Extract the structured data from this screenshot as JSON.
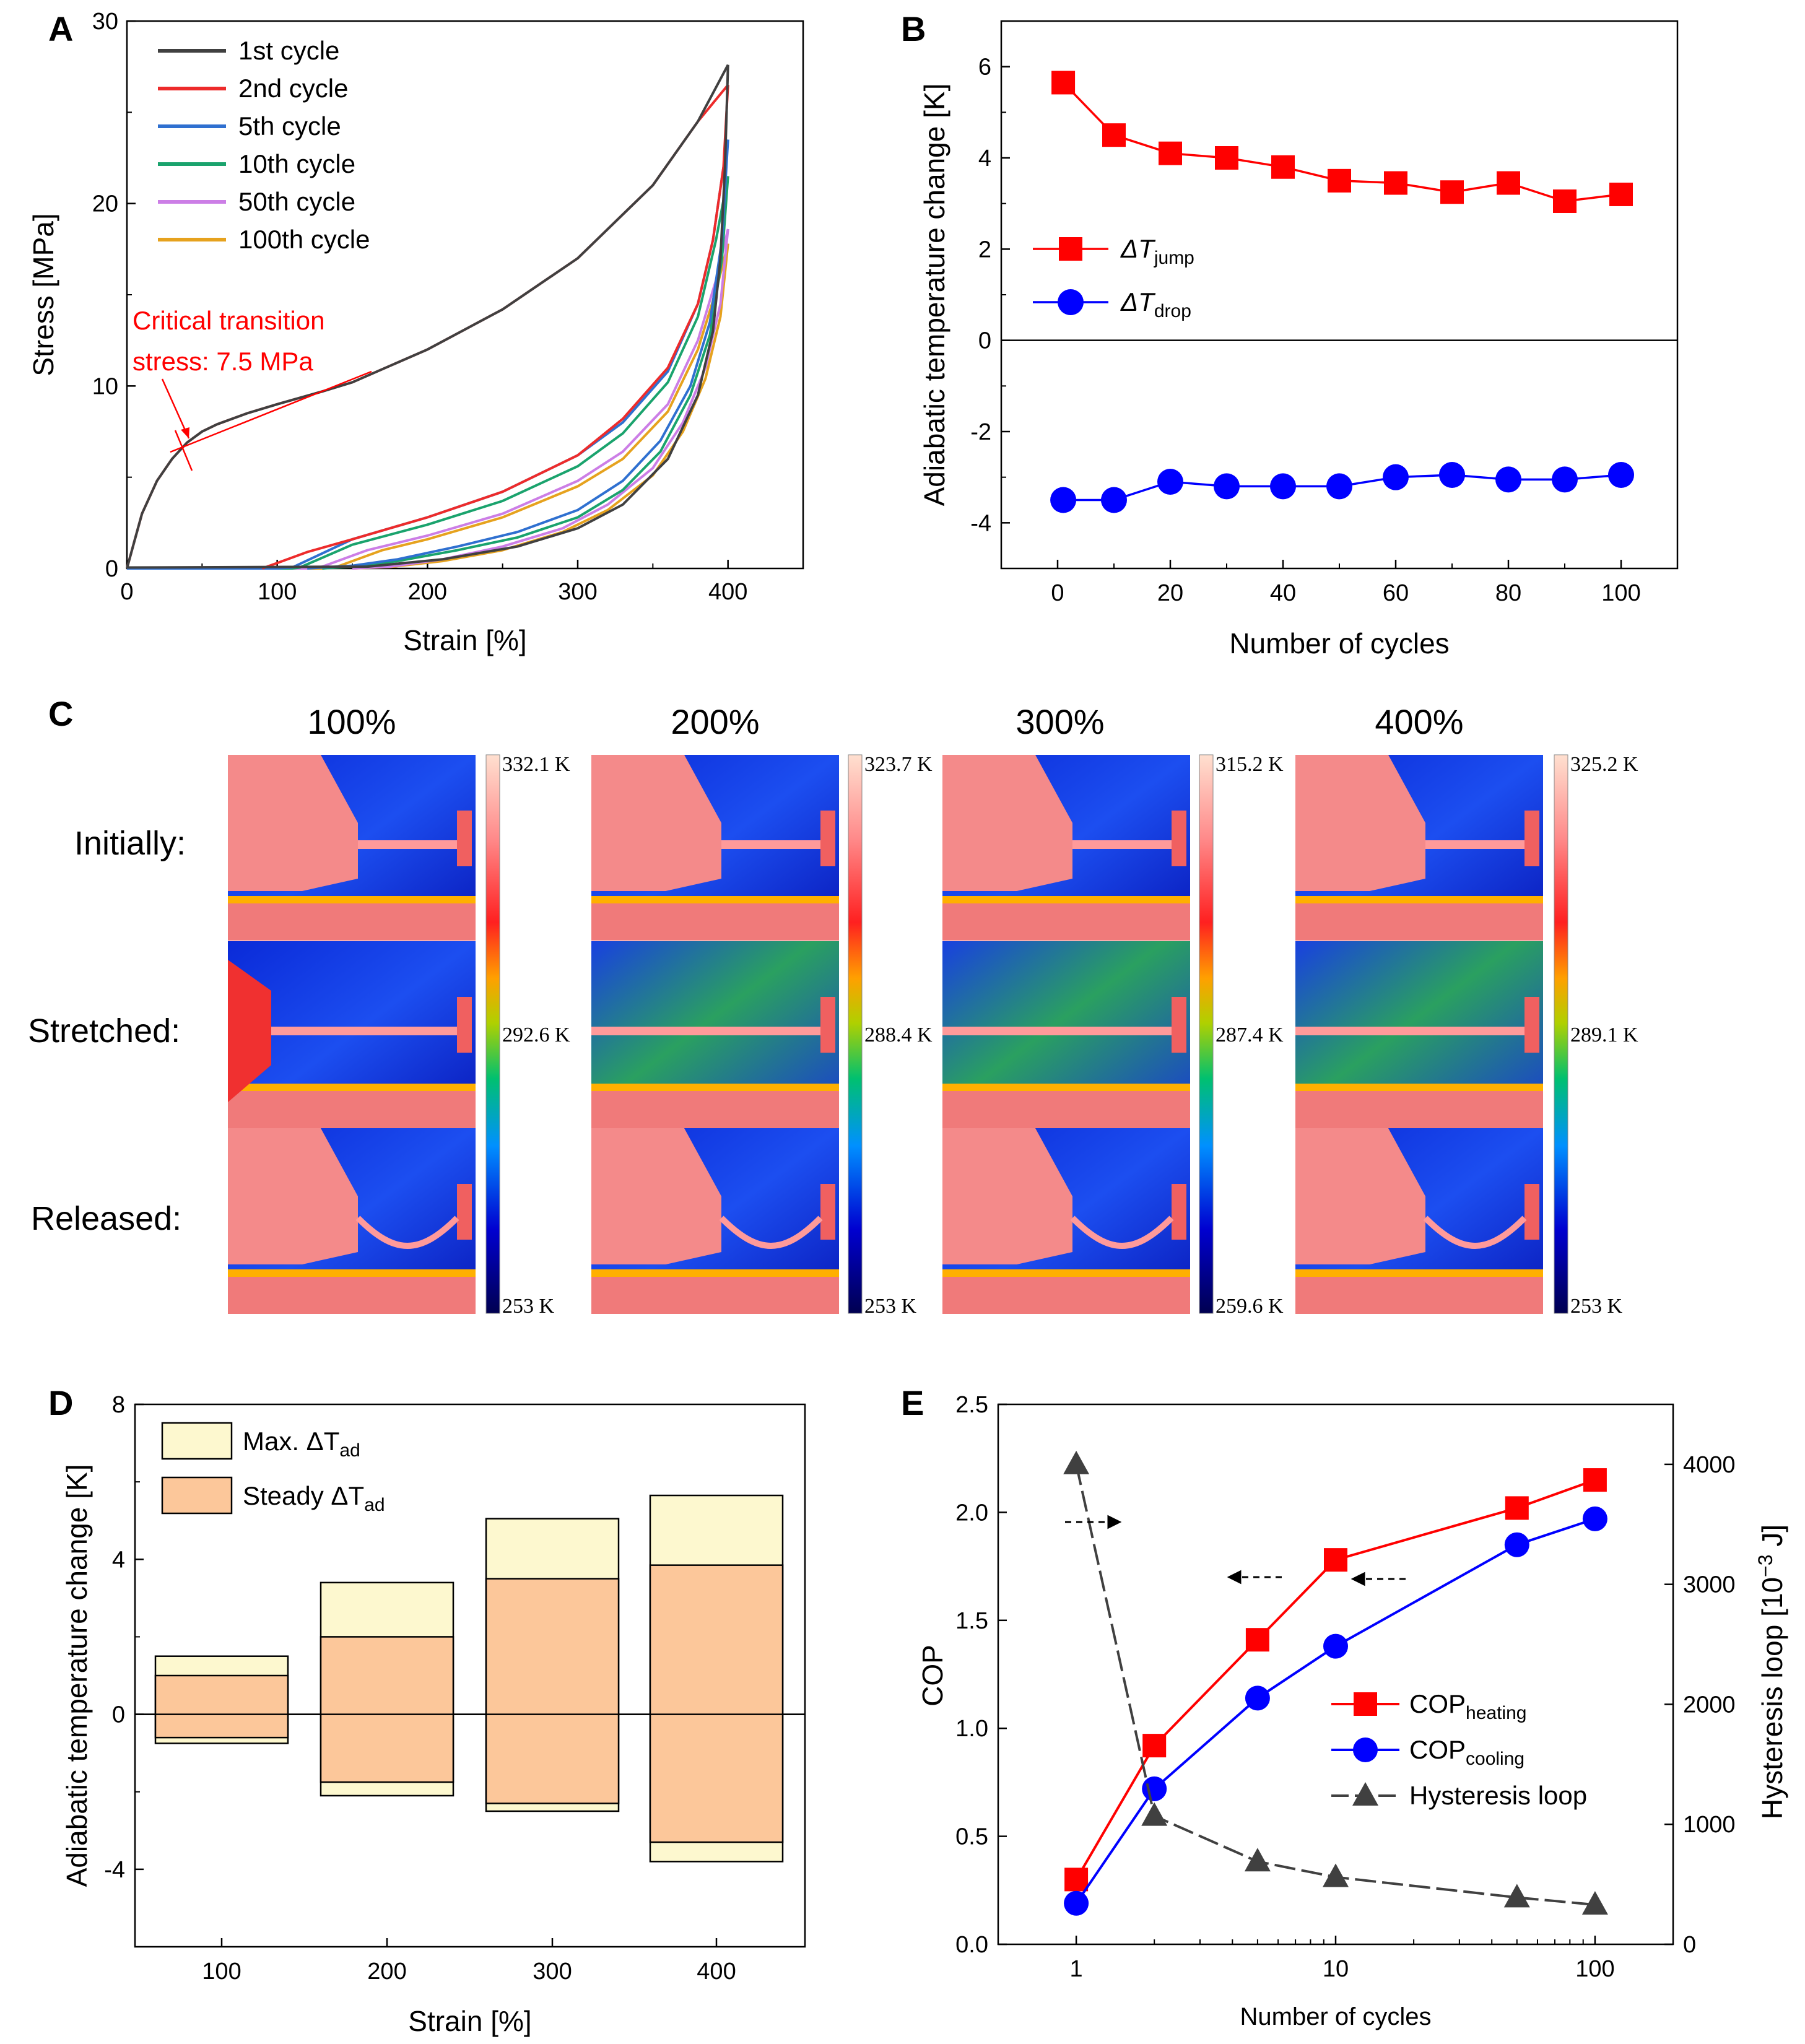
{
  "colors": {
    "black": "#404040",
    "red": "#ed2b2b",
    "blue": "#2f70d0",
    "green": "#1aa36d",
    "violet": "#cc7ee6",
    "orange": "#e6a21e",
    "red_b": "#ff0000",
    "blue_b": "#0000ff",
    "annot": "#ff0000",
    "maxfill": "#fdf8cf",
    "steadyfill": "#fcc79a"
  },
  "chart_data": [
    {
      "panel": "A",
      "type": "line",
      "xlabel": "Strain [%]",
      "ylabel": "Stress [MPa]",
      "xlim": [
        0,
        450
      ],
      "ylim": [
        0,
        30
      ],
      "xticks": [
        "0",
        "100",
        "200",
        "300",
        "400"
      ],
      "yticks": [
        "0",
        "10",
        "20",
        "30"
      ],
      "annotation": [
        "Critical transition",
        "stress: 7.5 MPa"
      ],
      "series": [
        {
          "name": "1st cycle",
          "color": "black",
          "load": [
            [
              0,
              0
            ],
            [
              5,
              1.5
            ],
            [
              10,
              3.0
            ],
            [
              20,
              4.8
            ],
            [
              30,
              6.0
            ],
            [
              40,
              6.9
            ],
            [
              50,
              7.5
            ],
            [
              60,
              7.9
            ],
            [
              80,
              8.5
            ],
            [
              100,
              9.0
            ],
            [
              130,
              9.7
            ],
            [
              150,
              10.2
            ],
            [
              200,
              12.0
            ],
            [
              250,
              14.2
            ],
            [
              300,
              17.0
            ],
            [
              350,
              21.0
            ],
            [
              380,
              24.5
            ],
            [
              400,
              27.6
            ]
          ],
          "unload": [
            [
              400,
              27.6
            ],
            [
              398,
              22
            ],
            [
              395,
              17
            ],
            [
              390,
              13
            ],
            [
              380,
              9.5
            ],
            [
              360,
              6.0
            ],
            [
              330,
              3.5
            ],
            [
              300,
              2.2
            ],
            [
              260,
              1.2
            ],
            [
              210,
              0.5
            ],
            [
              160,
              0.1
            ],
            [
              0,
              0.05
            ]
          ]
        },
        {
          "name": "2nd cycle",
          "color": "red",
          "load": [
            [
              0,
              0
            ],
            [
              5,
              1.5
            ],
            [
              10,
              3.0
            ],
            [
              20,
              4.8
            ],
            [
              30,
              6.0
            ],
            [
              40,
              6.9
            ],
            [
              50,
              7.5
            ],
            [
              60,
              7.9
            ],
            [
              80,
              8.5
            ],
            [
              100,
              9.0
            ],
            [
              130,
              9.7
            ],
            [
              150,
              10.2
            ],
            [
              200,
              12.0
            ],
            [
              250,
              14.2
            ],
            [
              300,
              17.0
            ],
            [
              350,
              21.0
            ],
            [
              380,
              24.5
            ],
            [
              400,
              26.5
            ]
          ],
          "unload": [
            [
              400,
              26.5
            ],
            [
              397,
              22
            ],
            [
              390,
              18
            ],
            [
              380,
              14.5
            ],
            [
              360,
              11
            ],
            [
              330,
              8.2
            ],
            [
              300,
              6.2
            ],
            [
              250,
              4.2
            ],
            [
              200,
              2.8
            ],
            [
              150,
              1.6
            ],
            [
              120,
              0.9
            ],
            [
              100,
              0.3
            ],
            [
              90,
              0
            ]
          ]
        },
        {
          "name": "5th cycle",
          "color": "blue",
          "load": [
            [
              0,
              0
            ],
            [
              100,
              0
            ],
            [
              110,
              0.05
            ],
            [
              150,
              1.6
            ],
            [
              200,
              2.8
            ],
            [
              250,
              4.2
            ],
            [
              300,
              6.2
            ],
            [
              330,
              8.0
            ],
            [
              360,
              10.8
            ],
            [
              380,
              14.5
            ],
            [
              390,
              18
            ],
            [
              397,
              22
            ],
            [
              400,
              23.5
            ]
          ],
          "unload": [
            [
              400,
              23.5
            ],
            [
              396,
              18
            ],
            [
              388,
              13.5
            ],
            [
              375,
              10
            ],
            [
              355,
              7
            ],
            [
              330,
              4.8
            ],
            [
              300,
              3.2
            ],
            [
              260,
              2.0
            ],
            [
              220,
              1.2
            ],
            [
              180,
              0.5
            ],
            [
              150,
              0.15
            ],
            [
              120,
              0
            ]
          ]
        },
        {
          "name": "10th cycle",
          "color": "green",
          "load": [
            [
              0,
              0
            ],
            [
              110,
              0
            ],
            [
              115,
              0.05
            ],
            [
              150,
              1.3
            ],
            [
              200,
              2.4
            ],
            [
              250,
              3.7
            ],
            [
              300,
              5.6
            ],
            [
              330,
              7.4
            ],
            [
              360,
              10.2
            ],
            [
              380,
              13.8
            ],
            [
              392,
              18
            ],
            [
              400,
              21.5
            ]
          ],
          "unload": [
            [
              400,
              21.5
            ],
            [
              396,
              17
            ],
            [
              388,
              12.8
            ],
            [
              375,
              9.5
            ],
            [
              355,
              6.4
            ],
            [
              330,
              4.3
            ],
            [
              300,
              2.8
            ],
            [
              260,
              1.7
            ],
            [
              220,
              1.0
            ],
            [
              180,
              0.4
            ],
            [
              150,
              0.1
            ],
            [
              130,
              0
            ]
          ]
        },
        {
          "name": "50th cycle",
          "color": "violet",
          "load": [
            [
              0,
              0
            ],
            [
              120,
              0
            ],
            [
              130,
              0.1
            ],
            [
              160,
              1.0
            ],
            [
              200,
              1.8
            ],
            [
              250,
              3.0
            ],
            [
              300,
              4.8
            ],
            [
              330,
              6.4
            ],
            [
              360,
              9.0
            ],
            [
              380,
              12.5
            ],
            [
              392,
              15.8
            ],
            [
              400,
              18.6
            ]
          ],
          "unload": [
            [
              400,
              18.6
            ],
            [
              395,
              14.5
            ],
            [
              385,
              11
            ],
            [
              370,
              8
            ],
            [
              350,
              5.5
            ],
            [
              320,
              3.5
            ],
            [
              290,
              2.2
            ],
            [
              250,
              1.2
            ],
            [
              210,
              0.5
            ],
            [
              175,
              0.1
            ],
            [
              150,
              0
            ]
          ]
        },
        {
          "name": "100th cycle",
          "color": "orange",
          "load": [
            [
              0,
              0
            ],
            [
              130,
              0
            ],
            [
              140,
              0.1
            ],
            [
              170,
              1.0
            ],
            [
              200,
              1.6
            ],
            [
              250,
              2.8
            ],
            [
              300,
              4.5
            ],
            [
              330,
              6.0
            ],
            [
              360,
              8.6
            ],
            [
              380,
              12.0
            ],
            [
              392,
              15.2
            ],
            [
              400,
              17.8
            ]
          ],
          "unload": [
            [
              400,
              17.8
            ],
            [
              395,
              13.8
            ],
            [
              385,
              10.4
            ],
            [
              370,
              7.5
            ],
            [
              350,
              5.1
            ],
            [
              320,
              3.2
            ],
            [
              290,
              2.0
            ],
            [
              250,
              1.0
            ],
            [
              210,
              0.4
            ],
            [
              175,
              0.08
            ],
            [
              150,
              0
            ]
          ]
        }
      ]
    },
    {
      "panel": "B",
      "type": "scatter",
      "xlabel": "Number of cycles",
      "ylabel": "Adiabatic temperature change [K]",
      "xlim": [
        -10,
        110
      ],
      "ylim": [
        -5,
        7
      ],
      "xticks": [
        "0",
        "20",
        "40",
        "60",
        "80",
        "100"
      ],
      "yticks": [
        "-4",
        "-2",
        "0",
        "2",
        "4",
        "6"
      ],
      "x": [
        1,
        10,
        20,
        30,
        40,
        50,
        60,
        70,
        80,
        90,
        100
      ],
      "series": [
        {
          "name": "ΔT",
          "subscript": "jump",
          "color": "red_b",
          "values": [
            5.65,
            4.5,
            4.1,
            4.0,
            3.8,
            3.5,
            3.45,
            3.25,
            3.45,
            3.05,
            3.2
          ]
        },
        {
          "name": "ΔT",
          "subscript": "drop",
          "color": "blue_b",
          "values": [
            -3.5,
            -3.5,
            -3.1,
            -3.2,
            -3.2,
            -3.2,
            -3.0,
            -2.95,
            -3.05,
            -3.05,
            -2.95
          ]
        }
      ]
    },
    {
      "panel": "D",
      "type": "bar",
      "xlabel": "Strain [%]",
      "ylabel": "Adiabatic temperature change [K]",
      "ylim": [
        -6,
        8
      ],
      "yticks": [
        "-4",
        "0",
        "4",
        "8"
      ],
      "categories": [
        "100",
        "200",
        "300",
        "400"
      ],
      "series": [
        {
          "name": "Max. ΔT",
          "subscript": "ad",
          "color": "maxfill",
          "pos": [
            1.5,
            3.4,
            5.05,
            5.65
          ],
          "neg": [
            -0.75,
            -2.1,
            -2.5,
            -3.8
          ]
        },
        {
          "name": "Steady ΔT",
          "subscript": "ad",
          "color": "steadyfill",
          "pos": [
            1.0,
            2.0,
            3.5,
            3.85
          ],
          "neg": [
            -0.6,
            -1.75,
            -2.3,
            -3.3
          ]
        }
      ]
    },
    {
      "panel": "E",
      "type": "line",
      "xlabel": "Number of cycles",
      "ylabel": "COP",
      "ylabel_right": "Hysteresis loop [10",
      "ylabel_right_sup": "−3",
      "ylabel_right_end": " J]",
      "xscale": "log",
      "xlim": [
        0.5,
        200
      ],
      "ylim": [
        0,
        2.5
      ],
      "ylim_right": [
        0,
        4500
      ],
      "xticks": [
        "1",
        "10",
        "100"
      ],
      "yticks": [
        "0.0",
        "0.5",
        "1.0",
        "1.5",
        "2.0",
        "2.5"
      ],
      "yticks_right": [
        "0",
        "1000",
        "2000",
        "3000",
        "4000"
      ],
      "x": [
        1,
        2,
        5,
        10,
        50,
        100
      ],
      "series": [
        {
          "name": "COP",
          "subscript": "heating",
          "color": "red_b",
          "axis": "left",
          "values": [
            0.3,
            0.92,
            1.41,
            1.78,
            2.02,
            2.15
          ]
        },
        {
          "name": "COP",
          "subscript": "cooling",
          "color": "blue_b",
          "axis": "left",
          "values": [
            0.19,
            0.72,
            1.14,
            1.38,
            1.85,
            1.97
          ]
        },
        {
          "name": "Hysteresis loop",
          "color": "black",
          "axis": "right",
          "values": [
            4000,
            1070,
            690,
            560,
            390,
            330
          ]
        }
      ]
    }
  ],
  "panel_c": {
    "columns": [
      "100%",
      "200%",
      "300%",
      "400%"
    ],
    "rows": [
      "Initially:",
      "Stretched:",
      "Released:"
    ],
    "scales": [
      {
        "max": "332.1 K",
        "mid": "292.6 K",
        "min": "253 K"
      },
      {
        "max": "323.7 K",
        "mid": "288.4 K",
        "min": "253 K"
      },
      {
        "max": "315.2 K",
        "mid": "287.4 K",
        "min": "259.6 K"
      },
      {
        "max": "325.2 K",
        "mid": "289.1 K",
        "min": "253 K"
      }
    ]
  },
  "labels": {
    "A": "A",
    "B": "B",
    "C": "C",
    "D": "D",
    "E": "E"
  }
}
